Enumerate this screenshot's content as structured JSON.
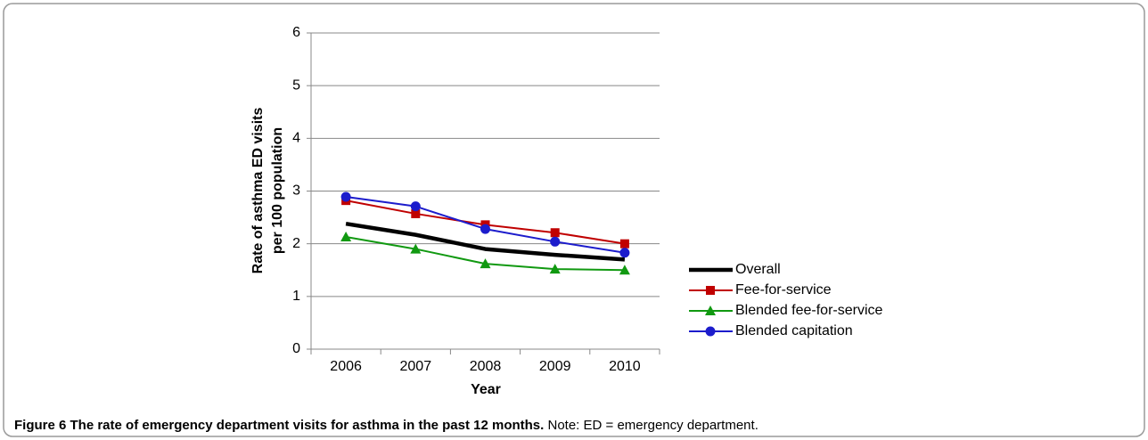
{
  "chart_data": {
    "type": "line",
    "y_label": [
      "Rate of asthma ED visits",
      "per 100 population"
    ],
    "x_label": "Year",
    "categories": [
      "2006",
      "2007",
      "2008",
      "2009",
      "2010"
    ],
    "series": [
      {
        "name": "Overall",
        "color": "#000000",
        "marker": "none",
        "values": [
          2.38,
          2.17,
          1.9,
          1.79,
          1.7
        ]
      },
      {
        "name": "Fee-for-service",
        "color": "#c00000",
        "marker": "square",
        "values": [
          2.82,
          2.57,
          2.36,
          2.21,
          2.0
        ]
      },
      {
        "name": "Blended fee-for-service",
        "color": "#119911",
        "marker": "triangle",
        "values": [
          2.13,
          1.9,
          1.62,
          1.52,
          1.5
        ]
      },
      {
        "name": "Blended capitation",
        "color": "#1c1ccc",
        "marker": "circle",
        "values": [
          2.89,
          2.71,
          2.28,
          2.04,
          1.83
        ]
      }
    ],
    "ylim": [
      0,
      6
    ],
    "yticks": [
      0,
      1,
      2,
      3,
      4,
      5,
      6
    ],
    "grid": true,
    "legend": "right"
  },
  "caption": {
    "title": "Figure 6 The rate of emergency department visits for asthma in the past 12 months.",
    "note": " Note: ED = emergency department."
  }
}
